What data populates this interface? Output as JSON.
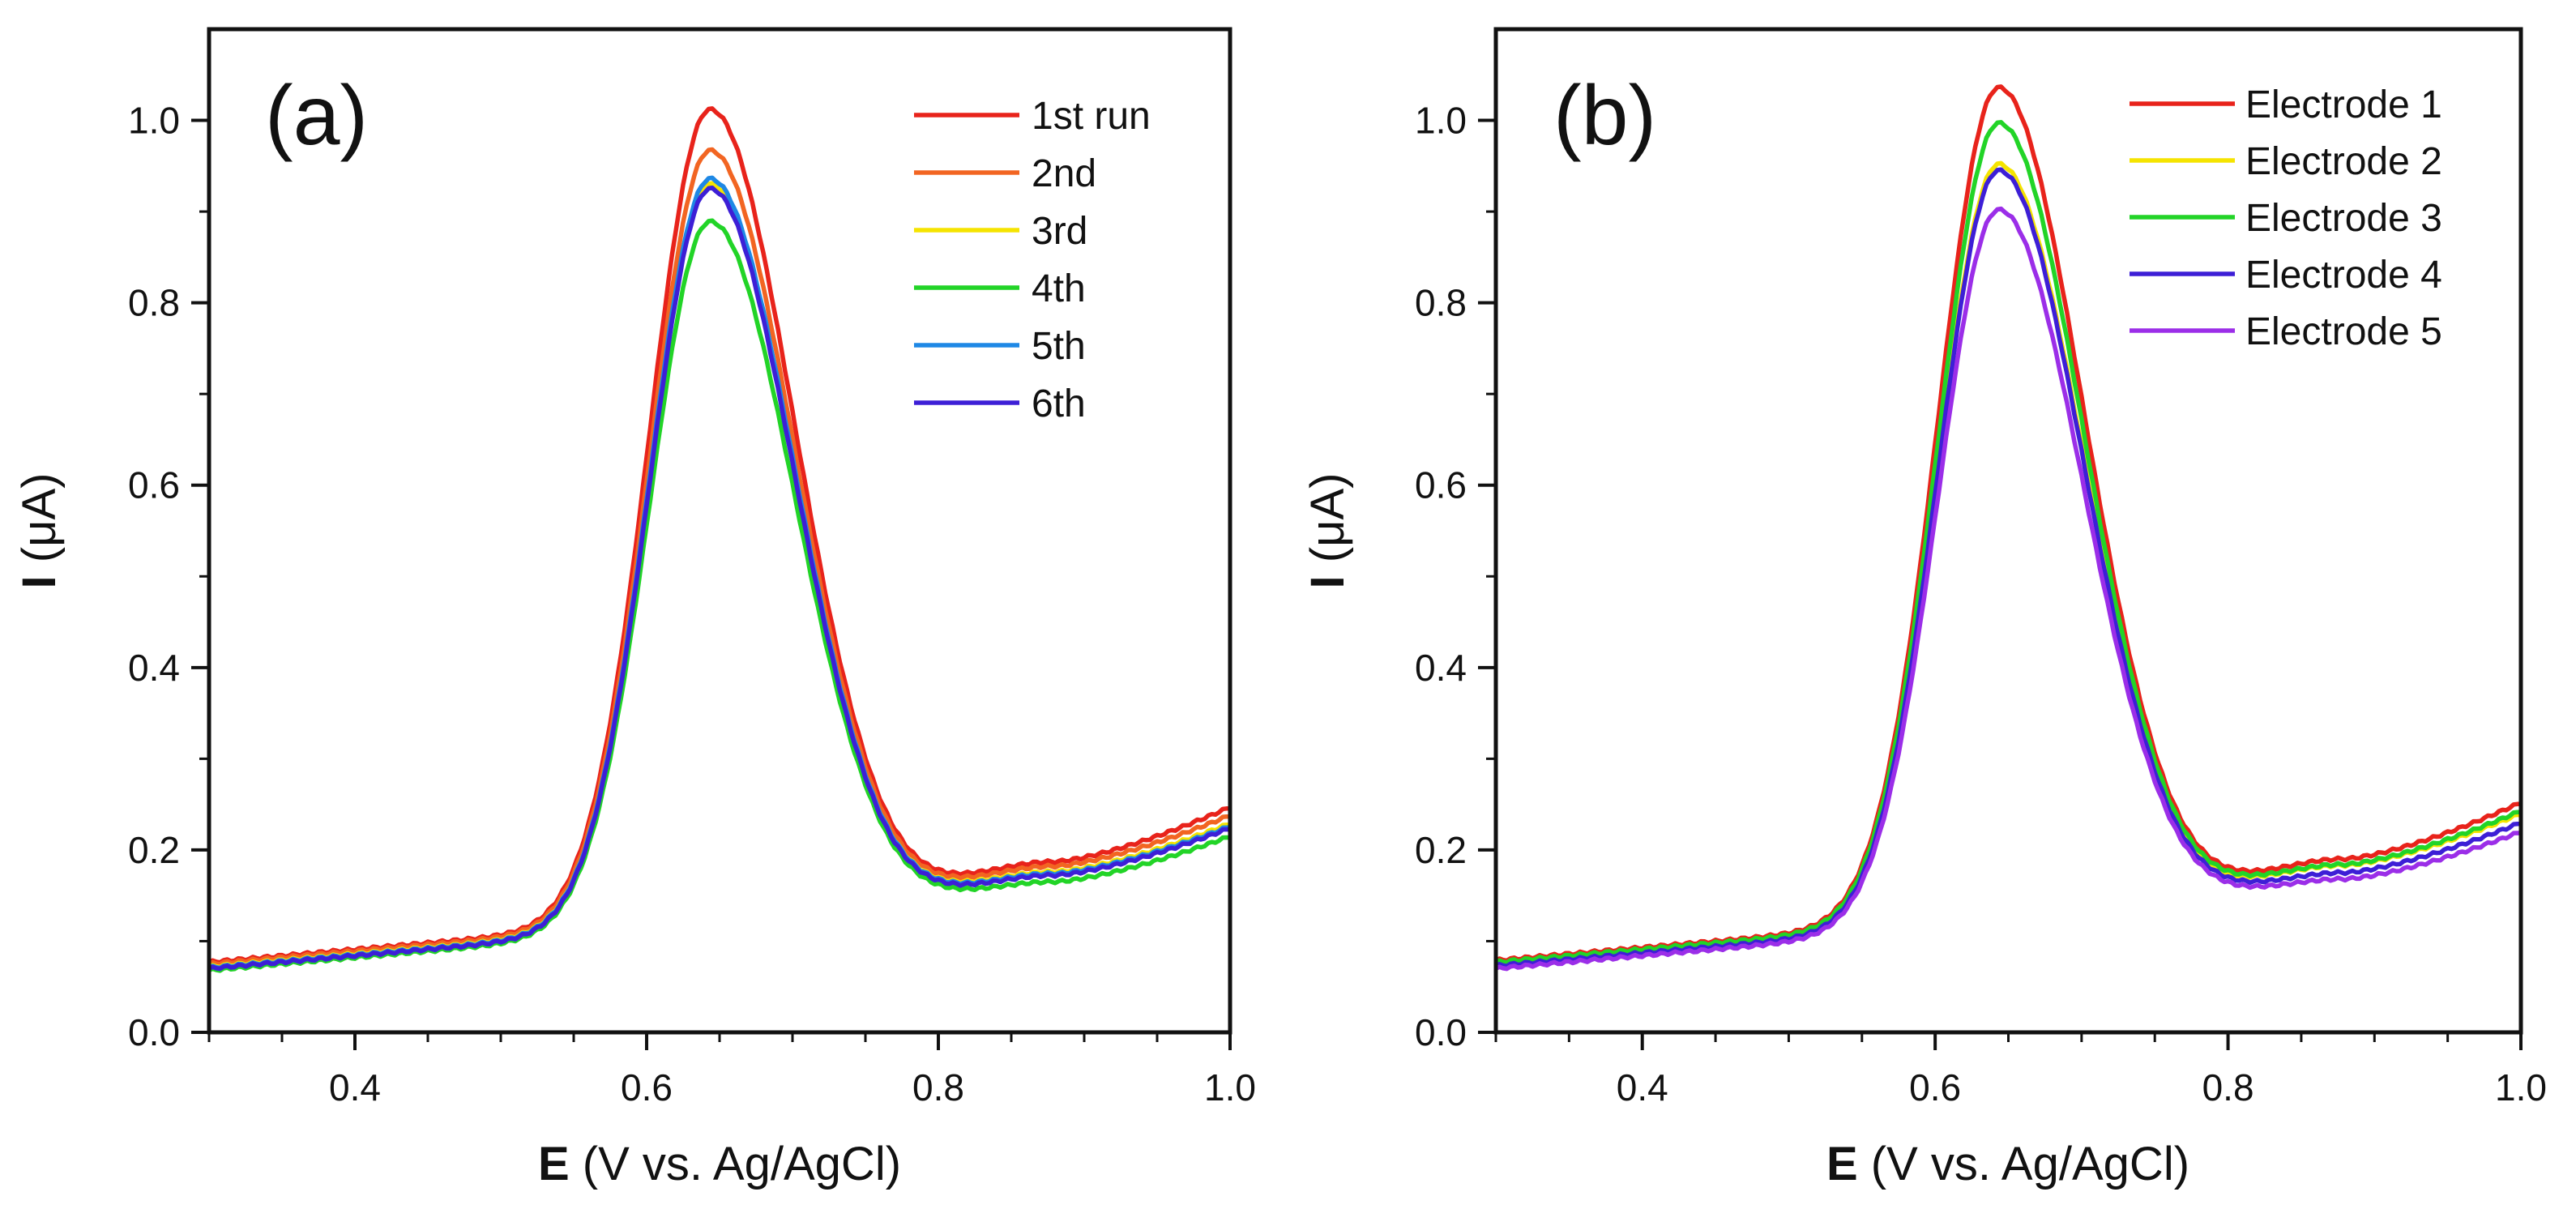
{
  "chart_data": [
    {
      "type": "line",
      "panel_label": "(a)",
      "xlabel_bold": "E",
      "xlabel_rest": " (V vs. Ag/AgCl)",
      "ylabel_bold": "I",
      "ylabel_rest": " (μA)",
      "xlim": [
        0.3,
        1.0
      ],
      "ylim": [
        0.0,
        1.1
      ],
      "xticks": [
        0.4,
        0.6,
        0.8,
        1.0
      ],
      "xtick_labels": [
        "0.4",
        "0.6",
        "0.8",
        "1.0"
      ],
      "yticks": [
        0.0,
        0.2,
        0.4,
        0.6,
        0.8,
        1.0
      ],
      "ytick_labels": [
        "0.0",
        "0.2",
        "0.4",
        "0.6",
        "0.8",
        "1.0"
      ],
      "legend_position": "top-right",
      "peak_x": 0.643,
      "series": [
        {
          "name": "1st run",
          "color": "#e8231b",
          "baseline_start": 0.077,
          "slope": 0.14,
          "valley": 0.187,
          "end": 0.247,
          "peak": 1.012
        },
        {
          "name": "2nd",
          "color": "#f26522",
          "baseline_start": 0.075,
          "slope": 0.14,
          "valley": 0.182,
          "end": 0.238,
          "peak": 0.967
        },
        {
          "name": "3rd",
          "color": "#f5e400",
          "baseline_start": 0.072,
          "slope": 0.14,
          "valley": 0.176,
          "end": 0.229,
          "peak": 0.93
        },
        {
          "name": "4th",
          "color": "#22d427",
          "baseline_start": 0.068,
          "slope": 0.14,
          "valley": 0.165,
          "end": 0.215,
          "peak": 0.889
        },
        {
          "name": "5th",
          "color": "#1e88e5",
          "baseline_start": 0.071,
          "slope": 0.14,
          "valley": 0.174,
          "end": 0.226,
          "peak": 0.936
        },
        {
          "name": "6th",
          "color": "#3d1fd6",
          "baseline_start": 0.07,
          "slope": 0.14,
          "valley": 0.172,
          "end": 0.224,
          "peak": 0.925
        }
      ]
    },
    {
      "type": "line",
      "panel_label": "(b)",
      "xlabel_bold": "E",
      "xlabel_rest": " (V vs. Ag/AgCl)",
      "ylabel_bold": "I",
      "ylabel_rest": " (μA)",
      "xlim": [
        0.3,
        1.0
      ],
      "ylim": [
        0.0,
        1.1
      ],
      "xticks": [
        0.4,
        0.6,
        0.8,
        1.0
      ],
      "xtick_labels": [
        "0.4",
        "0.6",
        "0.8",
        "1.0"
      ],
      "yticks": [
        0.0,
        0.2,
        0.4,
        0.6,
        0.8,
        1.0
      ],
      "ytick_labels": [
        "0.0",
        "0.2",
        "0.4",
        "0.6",
        "0.8",
        "1.0"
      ],
      "legend_position": "top-right",
      "peak_x": 0.643,
      "series": [
        {
          "name": "Electrode 1",
          "color": "#e8231b",
          "baseline_start": 0.079,
          "slope": 0.14,
          "valley": 0.19,
          "end": 0.252,
          "peak": 1.036
        },
        {
          "name": "Electrode 2",
          "color": "#f5e400",
          "baseline_start": 0.076,
          "slope": 0.14,
          "valley": 0.183,
          "end": 0.24,
          "peak": 0.952
        },
        {
          "name": "Electrode 3",
          "color": "#22d427",
          "baseline_start": 0.077,
          "slope": 0.14,
          "valley": 0.184,
          "end": 0.243,
          "peak": 0.997
        },
        {
          "name": "Electrode 4",
          "color": "#3d1fd6",
          "baseline_start": 0.073,
          "slope": 0.14,
          "valley": 0.175,
          "end": 0.23,
          "peak": 0.945
        },
        {
          "name": "Electrode 5",
          "color": "#9b2ee8",
          "baseline_start": 0.07,
          "slope": 0.14,
          "valley": 0.168,
          "end": 0.22,
          "peak": 0.902
        }
      ]
    }
  ]
}
